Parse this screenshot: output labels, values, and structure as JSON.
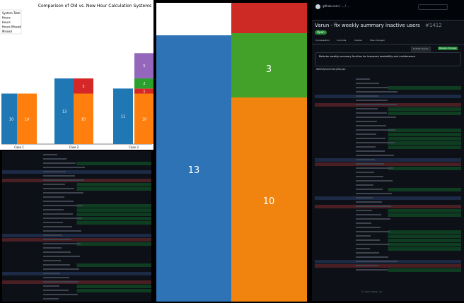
{
  "chart_data": [
    {
      "type": "bar",
      "title": "Comparison of Old vs. New Hour Calculation Systems",
      "categories": [
        "Case 1",
        "Case 2",
        "Case 3"
      ],
      "legend": {
        "placement": "top-left",
        "entries": [
          "System Total",
          "Hours",
          "Hours",
          "Hours Missed",
          "Missed"
        ]
      },
      "series": [
        {
          "values": [
            10,
            13,
            11
          ]
        },
        {
          "values": [
            10,
            10,
            10
          ]
        },
        {
          "values": [
            0,
            3,
            1
          ]
        },
        {
          "values": [
            0,
            0,
            2
          ]
        },
        {
          "values": [
            0,
            0,
            5
          ]
        }
      ],
      "data_labels": {
        "case1": [
          "10",
          "10"
        ],
        "case2": [
          "13",
          "10",
          "3"
        ],
        "case3": [
          "11",
          "10",
          "1",
          "2",
          "5"
        ]
      },
      "ylim": [
        0,
        20
      ],
      "colors": {
        "blue": "#1f77b4",
        "orange": "#ff7f0e",
        "red": "#d62728",
        "green": "#2ca02c",
        "purple": "#9467bd"
      }
    },
    {
      "type": "bar",
      "orientation": "stacked",
      "values": {
        "left": 13,
        "right_bottom": 10,
        "right_middle": 3
      },
      "labels": [
        "13",
        "10",
        "3"
      ],
      "colors": {
        "blue": "#2f73b7",
        "orange": "#f0840f",
        "green": "#43a12a",
        "red": "#cd2a25"
      }
    }
  ],
  "github": {
    "repo_header": "github.com / ... / ...",
    "pr_title": "Varun - fix weekly summary inactive users",
    "pr_number": "#1412",
    "status_badge": "Open",
    "tabs": [
      "Conversation",
      "Commits",
      "Checks",
      "Files changed"
    ],
    "commit_message": "Refactor weekly summary function for improved readability and maintenance",
    "file_name": "WeeklySummaryTab.jsx",
    "buttons": [
      "Submit review",
      "Review changes"
    ],
    "footer": "© 2024 GitHub, Inc."
  },
  "colors": {
    "dark_bg": "#0d1117",
    "diff_add": "#0f3d22",
    "diff_del": "#4a1f24",
    "link_blue": "#58a6ff",
    "open_green": "#238636",
    "hunk_bg": "#1c2a45"
  }
}
